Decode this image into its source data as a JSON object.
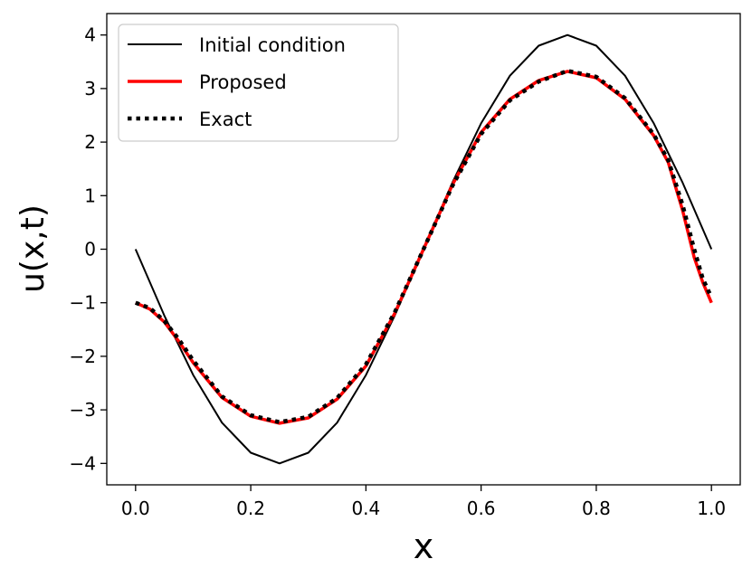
{
  "chart_data": {
    "type": "line",
    "xlabel": "x",
    "ylabel": "u(x,t)",
    "xlim": [
      -0.05,
      1.05
    ],
    "ylim": [
      -4.4,
      4.4
    ],
    "xticks": [
      0.0,
      0.2,
      0.4,
      0.6,
      0.8,
      1.0
    ],
    "xtick_labels": [
      "0.0",
      "0.2",
      "0.4",
      "0.6",
      "0.8",
      "1.0"
    ],
    "yticks": [
      -4,
      -3,
      -2,
      -1,
      0,
      1,
      2,
      3,
      4
    ],
    "ytick_labels": [
      "−4",
      "−3",
      "−2",
      "−1",
      "0",
      "1",
      "2",
      "3",
      "4"
    ],
    "legend_position": "top-left",
    "series": [
      {
        "name": "Initial condition",
        "color": "#000000",
        "style": "solid",
        "x": [
          0.0,
          0.05,
          0.1,
          0.15,
          0.2,
          0.25,
          0.3,
          0.35,
          0.4,
          0.45,
          0.5,
          0.55,
          0.6,
          0.65,
          0.7,
          0.75,
          0.8,
          0.85,
          0.9,
          0.95,
          1.0
        ],
        "y": [
          0.0,
          -1.24,
          -2.35,
          -3.24,
          -3.8,
          -4.0,
          -3.8,
          -3.24,
          -2.35,
          -1.24,
          0.0,
          1.24,
          2.35,
          3.24,
          3.8,
          4.0,
          3.8,
          3.24,
          2.35,
          1.24,
          0.0
        ]
      },
      {
        "name": "Proposed",
        "color": "#ff0000",
        "style": "solid",
        "x": [
          0.0,
          0.025,
          0.05,
          0.075,
          0.1,
          0.15,
          0.2,
          0.25,
          0.3,
          0.35,
          0.4,
          0.45,
          0.5,
          0.55,
          0.6,
          0.65,
          0.7,
          0.75,
          0.8,
          0.85,
          0.9,
          0.925,
          0.95,
          0.97,
          0.985,
          1.0
        ],
        "y": [
          -1.0,
          -1.12,
          -1.36,
          -1.72,
          -2.12,
          -2.77,
          -3.12,
          -3.25,
          -3.15,
          -2.8,
          -2.18,
          -1.2,
          0.0,
          1.2,
          2.18,
          2.8,
          3.15,
          3.32,
          3.2,
          2.8,
          2.12,
          1.62,
          0.72,
          -0.15,
          -0.62,
          -1.0
        ]
      },
      {
        "name": "Exact",
        "color": "#000000",
        "style": "dotted",
        "x": [
          0.0,
          0.025,
          0.05,
          0.075,
          0.1,
          0.15,
          0.2,
          0.25,
          0.3,
          0.35,
          0.4,
          0.45,
          0.5,
          0.55,
          0.6,
          0.65,
          0.7,
          0.75,
          0.8,
          0.85,
          0.9,
          0.925,
          0.95,
          0.97,
          0.985,
          1.0
        ],
        "y": [
          -1.0,
          -1.1,
          -1.34,
          -1.68,
          -2.08,
          -2.75,
          -3.1,
          -3.23,
          -3.13,
          -2.78,
          -2.15,
          -1.18,
          0.0,
          1.18,
          2.15,
          2.78,
          3.13,
          3.33,
          3.22,
          2.82,
          2.14,
          1.66,
          0.82,
          0.0,
          -0.55,
          -0.9
        ]
      }
    ]
  }
}
